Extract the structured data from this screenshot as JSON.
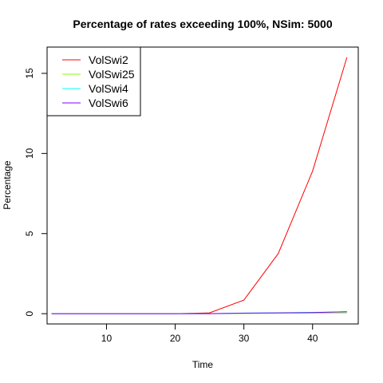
{
  "chart_data": {
    "type": "line",
    "title": "Percentage of rates exceeding 100%, NSim: 5000",
    "xlabel": "Time",
    "ylabel": "Percentage",
    "xlim": [
      1.35,
      46.65
    ],
    "ylim": [
      -0.64,
      16.64
    ],
    "xticks": [
      10,
      20,
      30,
      40
    ],
    "yticks": [
      0,
      5,
      10,
      15
    ],
    "x": [
      2,
      5,
      10,
      15,
      20,
      25,
      30,
      35,
      40,
      45
    ],
    "series": [
      {
        "name": "VolSwi2",
        "color": "#ff0000",
        "values": [
          0,
          0,
          0,
          0,
          0,
          0.05,
          0.85,
          3.75,
          8.9,
          16.0
        ]
      },
      {
        "name": "VolSwi25",
        "color": "#80ff00",
        "values": [
          0,
          0,
          0,
          0,
          0,
          0,
          0.02,
          0.03,
          0.04,
          0.05
        ]
      },
      {
        "name": "VolSwi4",
        "color": "#00ffff",
        "values": [
          0,
          0,
          0,
          0,
          0,
          0.01,
          0.04,
          0.06,
          0.08,
          0.12
        ]
      },
      {
        "name": "VolSwi6",
        "color": "#8000ff",
        "values": [
          0,
          0,
          0,
          0,
          0,
          0,
          0.03,
          0.05,
          0.07,
          0.12
        ]
      }
    ],
    "grid": false,
    "legend_position": "top-left"
  }
}
